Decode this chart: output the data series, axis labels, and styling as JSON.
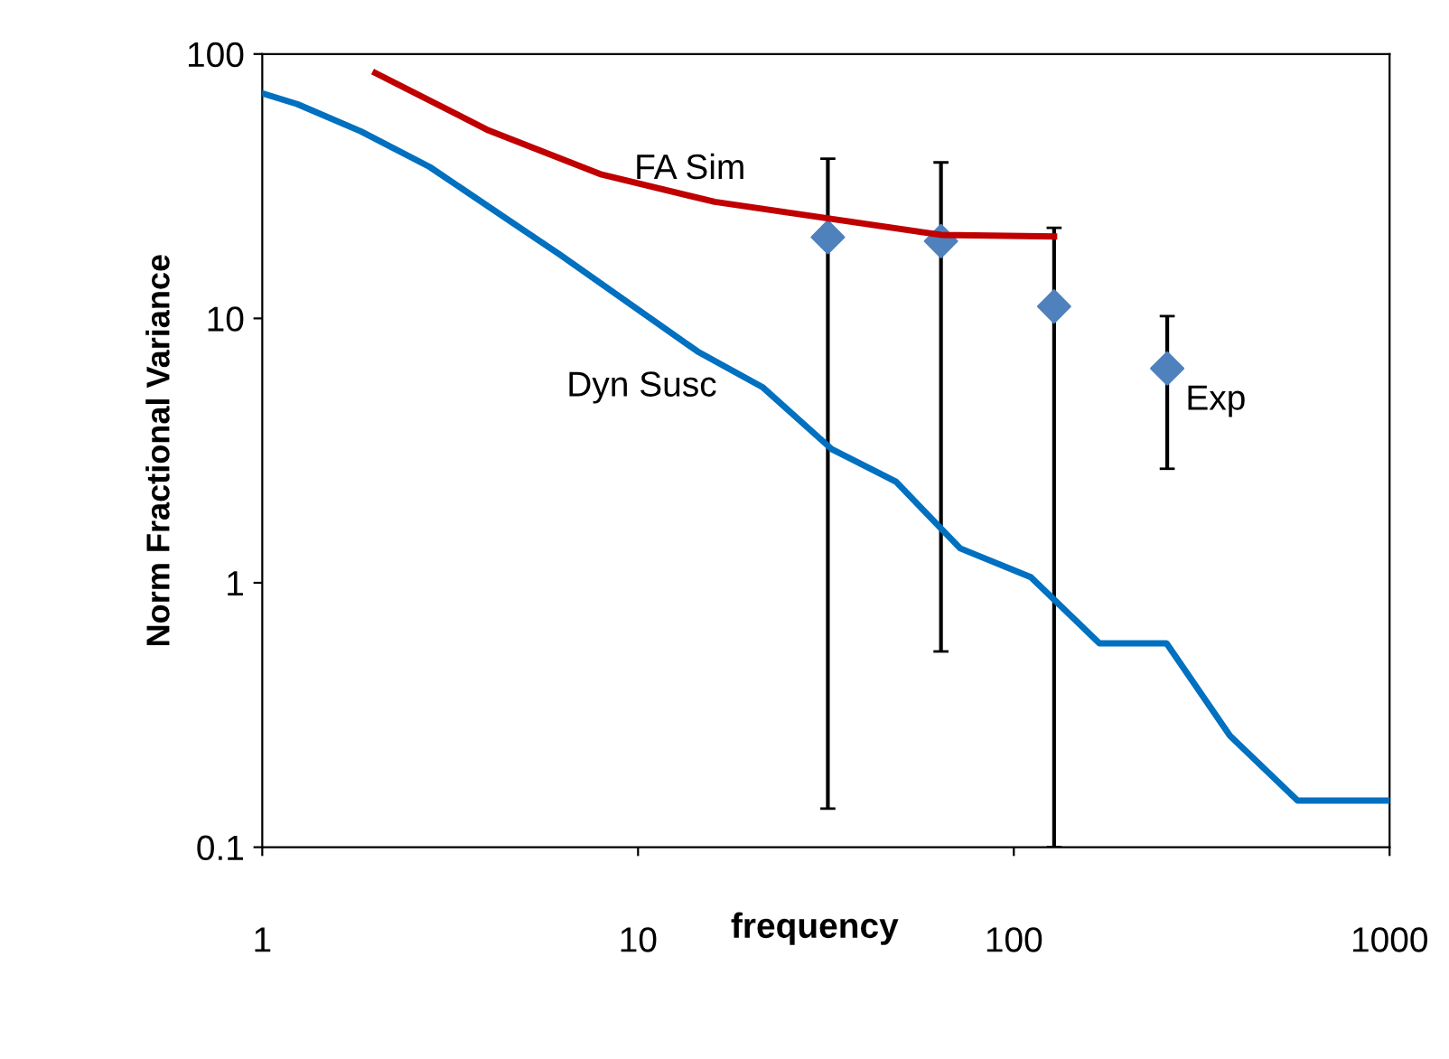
{
  "chart_data": {
    "type": "line",
    "xlabel": "frequency",
    "ylabel": "Norm Fractional Variance",
    "log": "xy",
    "xlim": [
      1,
      1000
    ],
    "xticks": [
      1,
      10,
      100,
      1000
    ],
    "ylim": [
      0.1,
      100
    ],
    "yticks": [
      100,
      10,
      1,
      0.1
    ],
    "grid": false,
    "legend": false,
    "series": [
      {
        "name": "Dyn Susc",
        "color": "#0070c0",
        "x": [
          1,
          1.24,
          1.83,
          2.79,
          6.2,
          14.4,
          21.5,
          32.7,
          48.6,
          72,
          111,
          169,
          255,
          376,
          569,
          1000
        ],
        "values": [
          71,
          64.6,
          51,
          37.4,
          17.4,
          7.5,
          5.48,
          3.21,
          2.41,
          1.35,
          1.05,
          0.59,
          0.59,
          0.264,
          0.15,
          0.15
        ]
      },
      {
        "name": "FA Sim",
        "color": "#c00000",
        "x": [
          2,
          4,
          8,
          16,
          64,
          128
        ],
        "values": [
          84.8,
          51.4,
          35,
          27.6,
          20.7,
          20.4
        ]
      },
      {
        "name": "Exp",
        "type": "scatter",
        "marker": "diamond",
        "color": "#4f81bd",
        "x": [
          32,
          64,
          128,
          256
        ],
        "values": [
          20.3,
          19.6,
          11.1,
          6.47
        ],
        "errors": [
          [
            0.14,
            40.2
          ],
          [
            0.55,
            38.9
          ],
          [
            0.1,
            22
          ],
          [
            2.7,
            10.2
          ]
        ]
      }
    ]
  }
}
